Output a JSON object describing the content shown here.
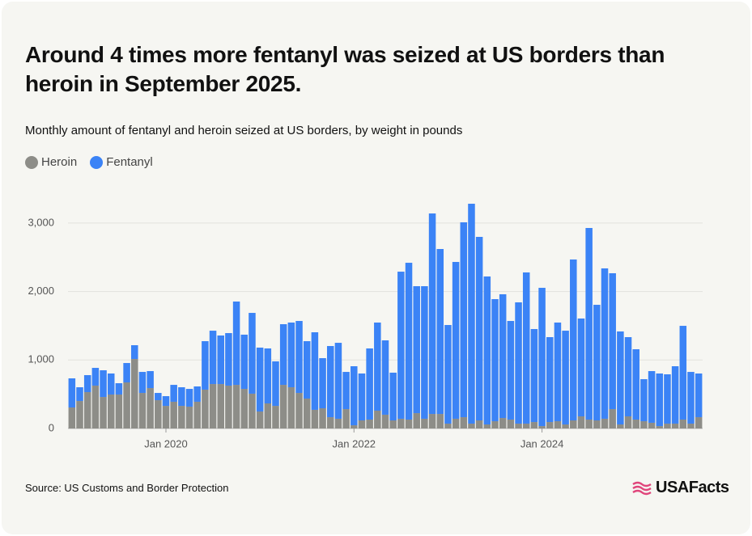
{
  "chart_data": {
    "type": "bar",
    "stacked": true,
    "title": "Around 4 times more fentanyl was seized at US borders than heroin in September 2025.",
    "subtitle": "Monthly amount of fentanyl and heroin seized at US borders, by weight in pounds",
    "source": "Source: US Customs and Border Protection",
    "logo": "USAFacts",
    "categories": [
      null,
      null,
      null,
      null,
      null,
      null,
      null,
      null,
      null,
      null,
      null,
      null,
      "Jan 2020",
      null,
      null,
      null,
      null,
      null,
      null,
      null,
      null,
      null,
      null,
      null,
      null,
      null,
      null,
      null,
      null,
      null,
      null,
      null,
      null,
      null,
      null,
      null,
      "Jan 2022",
      null,
      null,
      null,
      null,
      null,
      null,
      null,
      null,
      null,
      null,
      null,
      null,
      null,
      null,
      null,
      null,
      null,
      null,
      null,
      null,
      null,
      null,
      null,
      "Jan 2024",
      null,
      null,
      null,
      null,
      null,
      null,
      null,
      null,
      null,
      null,
      null,
      null,
      null,
      null,
      null,
      null,
      null,
      null,
      null,
      null
    ],
    "series": [
      {
        "name": "Heroin",
        "color": "#8d8d88",
        "values": [
          307,
          401,
          531,
          626,
          460,
          496,
          496,
          673,
          1015,
          519,
          590,
          413,
          330,
          390,
          330,
          319,
          390,
          567,
          649,
          649,
          626,
          637,
          578,
          508,
          248,
          366,
          330,
          637,
          602,
          519,
          437,
          272,
          295,
          165,
          142,
          283,
          47,
          118,
          130,
          260,
          201,
          118,
          142,
          130,
          224,
          142,
          212,
          212,
          71,
          142,
          165,
          71,
          118,
          59,
          106,
          153,
          130,
          71,
          71,
          94,
          35,
          94,
          106,
          59,
          118,
          177,
          130,
          118,
          142,
          283,
          59,
          177,
          130,
          106,
          83,
          35,
          71,
          71,
          130,
          71,
          165
        ]
      },
      {
        "name": "Fentanyl",
        "color": "#3b83f6",
        "values": [
          425,
          201,
          248,
          259,
          390,
          307,
          165,
          283,
          201,
          307,
          248,
          106,
          142,
          247,
          272,
          259,
          224,
          708,
          779,
          709,
          767,
          1217,
          792,
          1180,
          933,
          803,
          650,
          886,
          945,
          1051,
          838,
          1133,
          732,
          1039,
          1109,
          543,
          862,
          685,
          1039,
          1287,
          1086,
          697,
          2148,
          2290,
          1854,
          1936,
          2928,
          2409,
          1440,
          2290,
          2846,
          3211,
          2680,
          2161,
          1783,
          1807,
          1440,
          1771,
          2208,
          1358,
          2019,
          1240,
          1441,
          1369,
          2350,
          1429,
          2798,
          1688,
          2196,
          1984,
          1358,
          1157,
          1027,
          614,
          755,
          768,
          720,
          838,
          1369,
          755,
          638
        ]
      }
    ],
    "ylim": [
      0,
      3500
    ],
    "yticks": [
      0,
      {
        "value": 1000,
        "label": "1,000"
      },
      {
        "value": 2000,
        "label": "2,000"
      },
      {
        "value": 3000,
        "label": "3,000"
      }
    ],
    "grid": true
  }
}
